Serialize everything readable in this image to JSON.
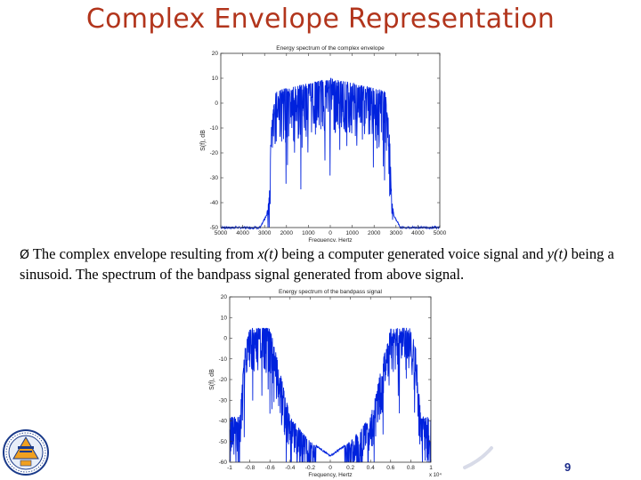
{
  "slide": {
    "title": "Complex Envelope Representation",
    "page_number": "9",
    "caption": {
      "bullet": "Ø",
      "text_1": " The complex envelope resulting from ",
      "x_t": "x(t)",
      "text_2": " being a computer generated voice signal and ",
      "y_t": "y(t)",
      "text_3": " being a sinusoid. The spectrum of the bandpass signal generated from above signal."
    }
  },
  "chart_data": [
    {
      "type": "line",
      "title": "Energy spectrum of the complex envelope",
      "xlabel": "Frequency, Hertz",
      "ylabel": "S(f), dB",
      "xlim": [
        -5000,
        5000
      ],
      "ylim": [
        -50,
        20
      ],
      "xticks": [
        "5000",
        "4000",
        "3000",
        "2000",
        "1000",
        "0",
        "1000",
        "2000",
        "3000",
        "4000",
        "5000"
      ],
      "yticks": [
        "20",
        "10",
        "0",
        "-10",
        "-20",
        "-30",
        "-40",
        "-50"
      ],
      "series_color": "#0022dd",
      "envelope": {
        "x": [
          -5000,
          -3200,
          -2900,
          -2800,
          -2700,
          -2500,
          -1000,
          0,
          1000,
          2500,
          2700,
          2800,
          2900,
          3200,
          5000
        ],
        "y": [
          -50,
          -50,
          -45,
          -38,
          -10,
          5,
          8,
          10,
          8,
          5,
          -10,
          -38,
          -45,
          -50,
          -50
        ]
      }
    },
    {
      "type": "line",
      "title": "Energy spectrum of the bandpass signal",
      "xlabel": "Frequency, Hertz",
      "ylabel": "S(f), dB",
      "x_multiplier": "x 10⁴",
      "xlim": [
        -1,
        1
      ],
      "ylim": [
        -60,
        20
      ],
      "xticks": [
        "-1",
        "-0.8",
        "-0.6",
        "-0.4",
        "-0.2",
        "0",
        "0.2",
        "0.4",
        "0.6",
        "0.8",
        "1"
      ],
      "yticks": [
        "20",
        "10",
        "0",
        "-10",
        "-20",
        "-30",
        "-40",
        "-50",
        "-60"
      ],
      "series_color": "#0022dd",
      "envelope": {
        "x": [
          -1,
          -0.9,
          -0.85,
          -0.8,
          -0.6,
          -0.55,
          -0.4,
          -0.2,
          0,
          0.2,
          0.4,
          0.55,
          0.6,
          0.8,
          0.85,
          0.9,
          1
        ],
        "y": [
          -38,
          -38,
          -5,
          5,
          5,
          -5,
          -38,
          -50,
          -57,
          -50,
          -38,
          -5,
          5,
          5,
          -5,
          -38,
          -38
        ]
      }
    }
  ]
}
